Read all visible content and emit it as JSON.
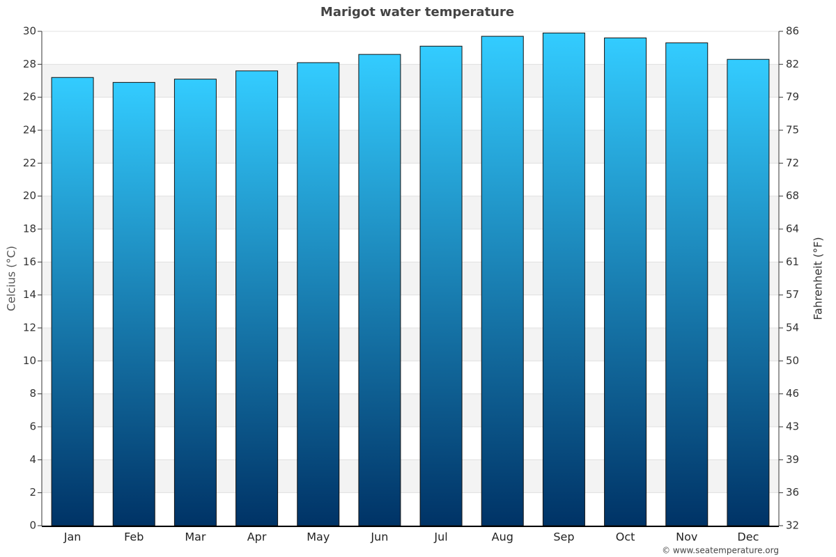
{
  "chart_data": {
    "type": "bar",
    "title": "Marigot water temperature",
    "categories": [
      "Jan",
      "Feb",
      "Mar",
      "Apr",
      "May",
      "Jun",
      "Jul",
      "Aug",
      "Sep",
      "Oct",
      "Nov",
      "Dec"
    ],
    "values": [
      27.2,
      26.9,
      27.1,
      27.6,
      28.1,
      28.6,
      29.1,
      29.7,
      29.9,
      29.6,
      29.3,
      28.3
    ],
    "color": [
      "#33ccff",
      "#003366"
    ],
    "ylabel": "Celcius (°C)",
    "y2label": "Fahrenheit (°F)",
    "ylim": [
      0,
      30
    ],
    "yticks": [
      0,
      2,
      4,
      6,
      8,
      10,
      12,
      14,
      16,
      18,
      20,
      22,
      24,
      26,
      28,
      30
    ],
    "y2lim": [
      32,
      86
    ],
    "y2ticks": [
      32,
      {
        "value": 35.6,
        "label": "36"
      },
      {
        "value": 39.2,
        "label": "39"
      },
      {
        "value": 42.8,
        "label": "43"
      },
      {
        "value": 46.4,
        "label": "46"
      },
      50,
      {
        "value": 53.6,
        "label": "54"
      },
      {
        "value": 57.2,
        "label": "57"
      },
      {
        "value": 60.8,
        "label": "61"
      },
      {
        "value": 64.4,
        "label": "64"
      },
      68,
      {
        "value": 71.6,
        "label": "72"
      },
      {
        "value": 75.2,
        "label": "75"
      },
      {
        "value": 78.8,
        "label": "79"
      },
      {
        "value": 82.4,
        "label": "82"
      },
      86
    ],
    "grid": true,
    "credit": "© www.seatemperature.org"
  }
}
